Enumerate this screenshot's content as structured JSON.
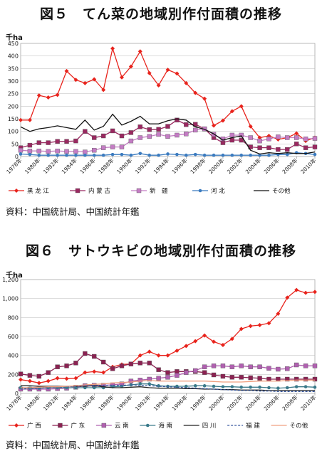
{
  "fig1": {
    "title": "図５　てん菜の地域別作付面積の推移",
    "unit": "千ha",
    "source": "資料：中国統計局、中国統計年鑑",
    "chart_data": {
      "type": "line",
      "x_labels": [
        "1978年",
        "1980年",
        "1982年",
        "1984年",
        "1986年",
        "1988年",
        "1990年",
        "1992年",
        "1994年",
        "1996年",
        "1998年",
        "2000年",
        "2002年",
        "2004年",
        "2006年",
        "2008年",
        "2010年"
      ],
      "years": [
        1978,
        1979,
        1980,
        1981,
        1982,
        1983,
        1984,
        1985,
        1986,
        1987,
        1988,
        1989,
        1990,
        1991,
        1992,
        1993,
        1994,
        1995,
        1996,
        1997,
        1998,
        1999,
        2000,
        2001,
        2002,
        2003,
        2004,
        2005,
        2006,
        2007,
        2008,
        2009,
        2010
      ],
      "ylim": [
        0,
        450
      ],
      "yticks": [
        0,
        50,
        100,
        150,
        200,
        250,
        300,
        350,
        400,
        450
      ],
      "series": [
        {
          "name": "黒 龙 江",
          "color": "#e8231c",
          "marker": "diamond",
          "values": [
            145,
            145,
            243,
            235,
            245,
            340,
            305,
            292,
            307,
            265,
            430,
            315,
            358,
            418,
            332,
            283,
            345,
            330,
            292,
            253,
            230,
            123,
            143,
            180,
            200,
            120,
            75,
            82,
            68,
            75,
            92,
            62,
            75
          ]
        },
        {
          "name": "内 蒙 古",
          "color": "#9a2860",
          "marker": "square",
          "values": [
            35,
            45,
            55,
            55,
            60,
            60,
            62,
            100,
            75,
            82,
            102,
            82,
            95,
            118,
            107,
            108,
            120,
            145,
            127,
            128,
            110,
            75,
            55,
            65,
            65,
            38,
            35,
            35,
            28,
            28,
            50,
            35,
            38
          ]
        },
        {
          "name": "新　疆",
          "color": "#c47cc4",
          "marker": "square",
          "values": [
            25,
            22,
            22,
            20,
            22,
            20,
            20,
            18,
            25,
            35,
            38,
            38,
            62,
            75,
            80,
            88,
            80,
            85,
            90,
            105,
            110,
            88,
            70,
            85,
            85,
            75,
            62,
            70,
            78,
            75,
            75,
            70,
            72
          ]
        },
        {
          "name": "河 北",
          "color": "#3b7bbf",
          "marker": "circle",
          "values": [
            10,
            8,
            5,
            5,
            5,
            5,
            5,
            5,
            5,
            5,
            8,
            8,
            5,
            12,
            5,
            5,
            10,
            8,
            5,
            8,
            5,
            5,
            5,
            5,
            5,
            5,
            5,
            5,
            8,
            8,
            15,
            12,
            8
          ]
        },
        {
          "name": "その他",
          "color": "#111111",
          "marker": "none",
          "values": [
            118,
            100,
            110,
            115,
            122,
            115,
            108,
            145,
            105,
            120,
            168,
            125,
            140,
            160,
            130,
            130,
            142,
            150,
            145,
            118,
            108,
            90,
            65,
            75,
            82,
            25,
            10,
            15,
            12,
            15,
            12,
            12,
            18
          ]
        }
      ]
    }
  },
  "fig2": {
    "title": "図６　サトウキビの地域別作付面積の推移",
    "unit": "千ha",
    "source": "資料：中国統計局、中国統計年鑑",
    "chart_data": {
      "type": "line",
      "x_labels": [
        "1978年",
        "1980年",
        "1982年",
        "1984年",
        "1986年",
        "1988年",
        "1990年",
        "1992年",
        "1994年",
        "1996年",
        "1998年",
        "2000年",
        "2002年",
        "2004年",
        "2006年",
        "2008年",
        "2010年"
      ],
      "years": [
        1978,
        1979,
        1980,
        1981,
        1982,
        1983,
        1984,
        1985,
        1986,
        1987,
        1988,
        1989,
        1990,
        1991,
        1992,
        1993,
        1994,
        1995,
        1996,
        1997,
        1998,
        1999,
        2000,
        2001,
        2002,
        2003,
        2004,
        2005,
        2006,
        2007,
        2008,
        2009,
        2010
      ],
      "ylim": [
        0,
        1200
      ],
      "yticks": [
        0,
        200,
        400,
        600,
        800,
        1000,
        1200
      ],
      "ytick_labels": [
        "0",
        "200",
        "400",
        "600",
        "800",
        "1,000",
        "1,200"
      ],
      "series": [
        {
          "name": "广 西",
          "color": "#e8231c",
          "marker": "diamond",
          "values": [
            145,
            130,
            110,
            130,
            160,
            155,
            160,
            220,
            230,
            220,
            280,
            305,
            310,
            400,
            440,
            400,
            400,
            450,
            500,
            550,
            610,
            545,
            510,
            575,
            680,
            710,
            720,
            740,
            840,
            1010,
            1090,
            1060,
            1070
          ]
        },
        {
          "name": "广 东",
          "color": "#8b2252",
          "marker": "square",
          "values": [
            205,
            190,
            180,
            220,
            280,
            290,
            320,
            420,
            390,
            330,
            260,
            290,
            310,
            320,
            320,
            250,
            220,
            230,
            230,
            230,
            220,
            195,
            180,
            170,
            170,
            165,
            160,
            150,
            150,
            150,
            150,
            150,
            150
          ]
        },
        {
          "name": "云 南",
          "color": "#b060b0",
          "marker": "square",
          "values": [
            45,
            45,
            45,
            45,
            50,
            55,
            65,
            80,
            85,
            85,
            90,
            100,
            130,
            140,
            150,
            160,
            170,
            190,
            220,
            240,
            280,
            290,
            290,
            280,
            290,
            280,
            280,
            265,
            255,
            260,
            300,
            290,
            290
          ]
        },
        {
          "name": "海 南",
          "color": "#3a7a8a",
          "marker": "circle",
          "values": [
            60,
            55,
            55,
            60,
            60,
            60,
            60,
            60,
            60,
            60,
            70,
            75,
            90,
            100,
            100,
            80,
            75,
            75,
            75,
            80,
            80,
            75,
            70,
            70,
            65,
            65,
            65,
            60,
            55,
            60,
            70,
            70,
            65
          ]
        },
        {
          "name": "四 川",
          "color": "#222222",
          "marker": "none",
          "values": [
            80,
            80,
            75,
            75,
            75,
            75,
            75,
            75,
            80,
            70,
            60,
            60,
            65,
            70,
            60,
            55,
            55,
            55,
            50,
            50,
            45,
            45,
            40,
            40,
            35,
            35,
            35,
            30,
            30,
            30,
            30,
            30,
            30
          ]
        },
        {
          "name": "福 建",
          "color": "#3a5aa0",
          "marker": "none",
          "dash": "3,2",
          "values": [
            45,
            50,
            55,
            60,
            65,
            70,
            75,
            80,
            85,
            85,
            85,
            85,
            90,
            85,
            80,
            75,
            70,
            65,
            60,
            55,
            50,
            45,
            40,
            35,
            30,
            30,
            25,
            25,
            20,
            20,
            20,
            20,
            20
          ]
        },
        {
          "name": "その他",
          "color": "#f0a080",
          "marker": "none",
          "values": [
            60,
            60,
            65,
            70,
            70,
            75,
            80,
            90,
            95,
            100,
            110,
            115,
            120,
            130,
            135,
            130,
            130,
            130,
            130,
            130,
            130,
            125,
            120,
            120,
            120,
            125,
            130,
            130,
            130,
            135,
            140,
            140,
            140
          ]
        }
      ]
    }
  }
}
